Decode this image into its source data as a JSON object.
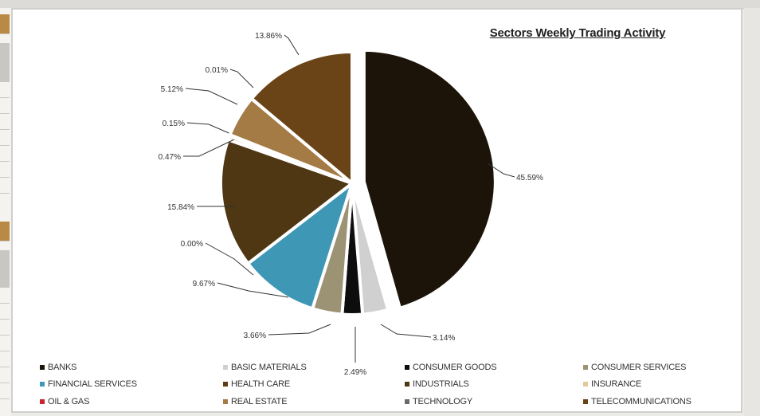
{
  "chart_data": {
    "type": "pie",
    "title": "Sectors Weekly Trading Activity",
    "slices": [
      {
        "label": "BANKS",
        "value": 45.59,
        "display": "45.59%",
        "color": "#1c1409"
      },
      {
        "label": "BASIC MATERIALS",
        "value": 3.14,
        "display": "3.14%",
        "color": "#d0d0d0"
      },
      {
        "label": "CONSUMER GOODS",
        "value": 2.49,
        "display": "2.49%",
        "color": "#0d0d0d"
      },
      {
        "label": "CONSUMER SERVICES",
        "value": 3.66,
        "display": "3.66%",
        "color": "#9c9274"
      },
      {
        "label": "FINANCIAL SERVICES",
        "value": 9.67,
        "display": "9.67%",
        "color": "#3f97b6"
      },
      {
        "label": "HEALTH CARE",
        "value": 0.0,
        "display": "0.00%",
        "color": "#5f3b13"
      },
      {
        "label": "INDUSTRIALS",
        "value": 15.84,
        "display": "15.84%",
        "color": "#4e3712"
      },
      {
        "label": "INSURANCE",
        "value": 0.47,
        "display": "0.47%",
        "color": "#e6c79b"
      },
      {
        "label": "OIL & GAS",
        "value": 0.15,
        "display": "0.15%",
        "color": "#c8262b"
      },
      {
        "label": "REAL ESTATE",
        "value": 5.12,
        "display": "5.12%",
        "color": "#a47a45"
      },
      {
        "label": "TECHNOLOGY",
        "value": 0.01,
        "display": "0.01%",
        "color": "#6b6b6b"
      },
      {
        "label": "TELECOMMUNICATIONS",
        "value": 13.86,
        "display": "13.86%",
        "color": "#6a4416"
      }
    ],
    "legend_position": "bottom"
  }
}
